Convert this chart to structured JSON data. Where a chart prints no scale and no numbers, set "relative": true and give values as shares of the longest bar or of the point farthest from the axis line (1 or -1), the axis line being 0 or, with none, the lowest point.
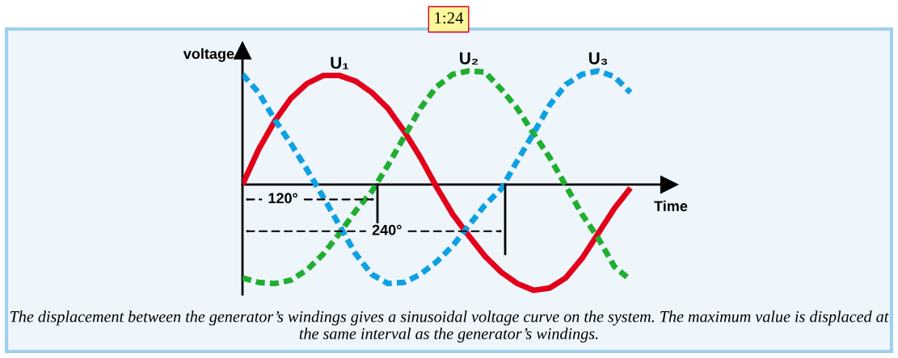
{
  "chart_data": {
    "type": "line",
    "title": "1:24",
    "xlabel": "Time",
    "ylabel": "voltage",
    "relative": true,
    "categories": [
      null,
      null,
      null,
      null,
      null,
      null,
      null,
      null,
      null,
      null,
      null,
      null,
      null,
      null,
      null,
      null,
      null,
      null,
      null,
      null,
      null,
      null,
      null,
      null,
      null
    ],
    "series": [
      {
        "name": "U₁",
        "color": "#e2001a",
        "line_style": "solid",
        "values": [
          0,
          0.31,
          0.56,
          0.76,
          0.89,
          0.96,
          0.96,
          0.91,
          0.81,
          0.67,
          0.47,
          0.24,
          -0.02,
          -0.26,
          -0.45,
          -0.63,
          -0.77,
          -0.87,
          -0.93,
          -0.91,
          -0.82,
          -0.65,
          -0.43,
          -0.21,
          -0.03
        ]
      },
      {
        "name": "U₂",
        "color": "#1fae2f",
        "line_style": "dashed",
        "values": [
          -0.82,
          -0.86,
          -0.87,
          -0.84,
          -0.75,
          -0.61,
          -0.43,
          -0.23,
          -0.06,
          0.17,
          0.42,
          0.67,
          0.86,
          0.97,
          1,
          0.99,
          0.84,
          0.67,
          0.45,
          0.24,
          -0.01,
          -0.26,
          -0.47,
          -0.72,
          -0.84
        ]
      },
      {
        "name": "U₃",
        "color": "#0ea0e2",
        "line_style": "dashed",
        "values": [
          0.97,
          0.81,
          0.57,
          0.36,
          0.13,
          -0.11,
          -0.36,
          -0.61,
          -0.79,
          -0.87,
          -0.86,
          -0.79,
          -0.68,
          -0.54,
          -0.36,
          -0.18,
          -0.04,
          0.21,
          0.45,
          0.7,
          0.88,
          0.97,
          1,
          0.95,
          0.81
        ]
      }
    ],
    "grid": false,
    "legend": false,
    "marker": "none",
    "annotations": [
      "120°",
      "240°",
      "The displacement between the generator’s windings gives a sinusoidal voltage curve on the system. The maximum value is displaced at the same interval as the generator’s windings."
    ]
  }
}
